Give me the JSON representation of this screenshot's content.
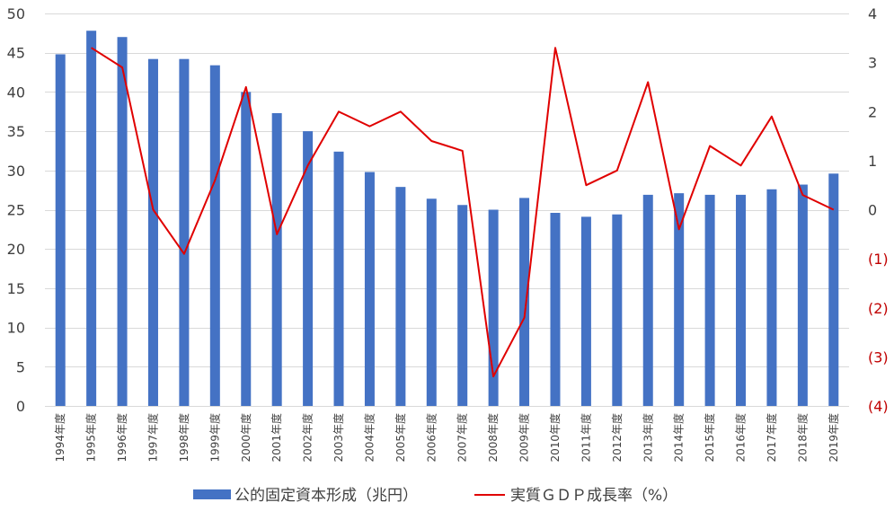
{
  "chart_data": {
    "type": "bar+line",
    "categories": [
      "1994年度",
      "1995年度",
      "1996年度",
      "1997年度",
      "1998年度",
      "1999年度",
      "2000年度",
      "2001年度",
      "2002年度",
      "2003年度",
      "2004年度",
      "2005年度",
      "2006年度",
      "2007年度",
      "2008年度",
      "2009年度",
      "2010年度",
      "2011年度",
      "2012年度",
      "2013年度",
      "2014年度",
      "2015年度",
      "2016年度",
      "2017年度",
      "2018年度",
      "2019年度"
    ],
    "series": [
      {
        "name": "公的固定資本形成（兆円）",
        "type": "bar",
        "axis": "left",
        "color": "#4472c4",
        "values": [
          44.8,
          47.8,
          47.0,
          44.2,
          44.2,
          43.4,
          40.0,
          37.3,
          35.0,
          32.4,
          29.8,
          27.9,
          26.4,
          25.6,
          25.0,
          26.5,
          24.6,
          24.1,
          24.4,
          26.9,
          27.1,
          26.9,
          26.9,
          27.6,
          28.2,
          29.6
        ]
      },
      {
        "name": "実質ＧＤＰ成長率（%）",
        "type": "line",
        "axis": "right",
        "color": "#e00000",
        "values": [
          null,
          3.3,
          2.9,
          0.0,
          -0.9,
          0.6,
          2.5,
          -0.5,
          0.9,
          2.0,
          1.7,
          2.0,
          1.4,
          1.2,
          -3.4,
          -2.2,
          3.3,
          0.5,
          0.8,
          2.6,
          -0.4,
          1.3,
          0.9,
          1.9,
          0.3,
          0.0
        ]
      }
    ],
    "y_left": {
      "lim": [
        0,
        50
      ],
      "ticks": [
        0,
        5,
        10,
        15,
        20,
        25,
        30,
        35,
        40,
        45,
        50
      ]
    },
    "y_right": {
      "lim": [
        -4,
        4
      ],
      "ticks": [
        4,
        3,
        2,
        1,
        0,
        -1,
        -2,
        -3,
        -4
      ],
      "tick_labels": [
        "4",
        "3",
        "2",
        "1",
        "0",
        "(1)",
        "(2)",
        "(3)",
        "(4)"
      ],
      "negative_label_color": "#c00000"
    },
    "grid": true,
    "legend": "bottom-center",
    "title": "",
    "xlabel": "",
    "ylabel": ""
  }
}
